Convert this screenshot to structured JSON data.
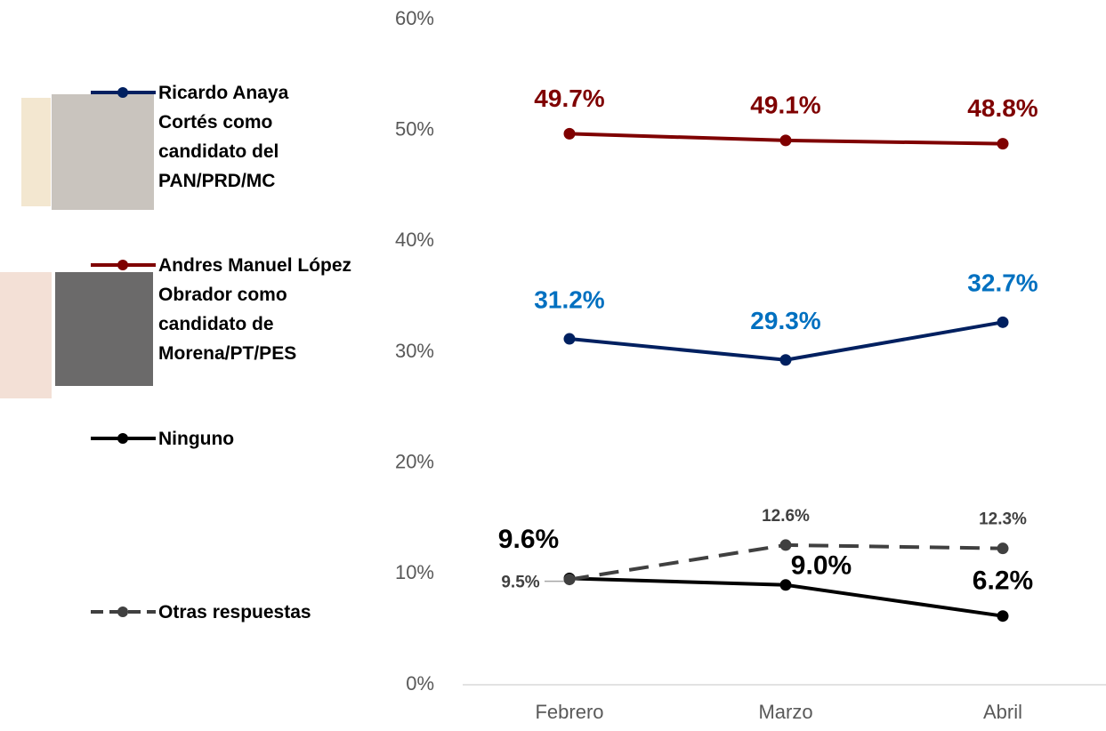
{
  "chart_data": {
    "type": "line",
    "categories": [
      "Febrero",
      "Marzo",
      "Abril"
    ],
    "ylim": [
      0,
      60
    ],
    "yticks": [
      {
        "value": 0,
        "label": "0%"
      },
      {
        "value": 10,
        "label": "10%"
      },
      {
        "value": 20,
        "label": "20%"
      },
      {
        "value": 30,
        "label": "30%"
      },
      {
        "value": 40,
        "label": "40%"
      },
      {
        "value": 50,
        "label": "50%"
      },
      {
        "value": 60,
        "label": "60%"
      }
    ],
    "series": [
      {
        "name": "Ricardo Anaya Cortés como candidato del PAN/PRD/MC",
        "color": "#002060",
        "label_color": "#0070c0",
        "dashed": false,
        "values": [
          31.2,
          29.3,
          32.7
        ],
        "value_labels": [
          "31.2%",
          "29.3%",
          "32.7%"
        ]
      },
      {
        "name": "Andres Manuel López Obrador como candidato de Morena/PT/PES",
        "color": "#7f0000",
        "label_color": "#7f0000",
        "dashed": false,
        "values": [
          49.7,
          49.1,
          48.8
        ],
        "value_labels": [
          "49.7%",
          "49.1%",
          "48.8%"
        ]
      },
      {
        "name": "Ninguno",
        "color": "#000000",
        "label_color": "#000000",
        "dashed": false,
        "values": [
          9.6,
          9.0,
          6.2
        ],
        "value_labels": [
          "9.6%",
          "9.0%",
          "6.2%"
        ]
      },
      {
        "name": "Otras respuestas",
        "color": "#404040",
        "label_color": "#404040",
        "dashed": true,
        "values": [
          9.5,
          12.6,
          12.3
        ],
        "value_labels": [
          "9.5%",
          "12.6%",
          "12.3%"
        ]
      }
    ]
  }
}
